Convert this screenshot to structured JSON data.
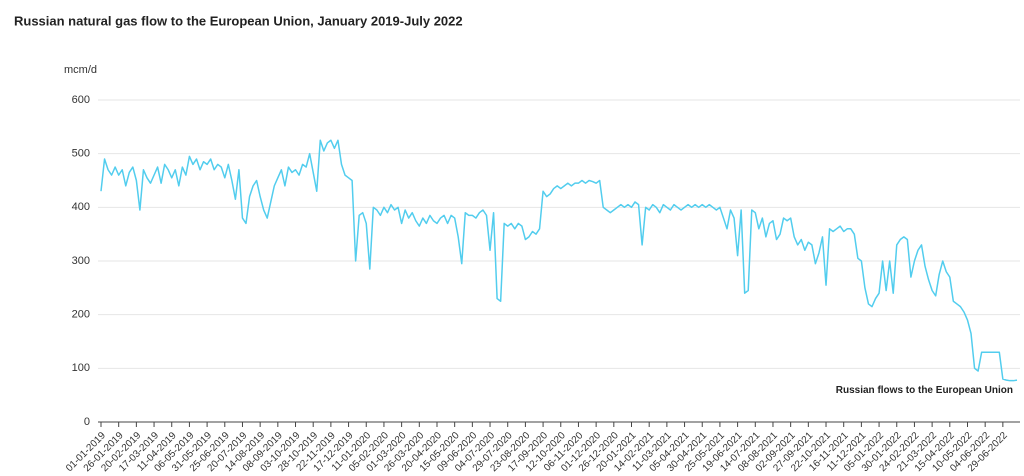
{
  "chart_data": {
    "type": "line",
    "title": "Russian natural gas flow to the European Union, January 2019-July 2022",
    "y_unit": "mcm/d",
    "categories": [
      "01-01-2019",
      null,
      null,
      null,
      null,
      "26-01-2019",
      null,
      null,
      null,
      null,
      "20-02-2019",
      null,
      null,
      null,
      null,
      "17-03-2019",
      null,
      null,
      null,
      null,
      "11-04-2019",
      null,
      null,
      null,
      null,
      "06-05-2019",
      null,
      null,
      null,
      null,
      "31-05-2019",
      null,
      null,
      null,
      null,
      "25-06-2019",
      null,
      null,
      null,
      null,
      "20-07-2019",
      null,
      null,
      null,
      null,
      "14-08-2019",
      null,
      null,
      null,
      null,
      "08-09-2019",
      null,
      null,
      null,
      null,
      "03-10-2019",
      null,
      null,
      null,
      null,
      "28-10-2019",
      null,
      null,
      null,
      null,
      "22-11-2019",
      null,
      null,
      null,
      null,
      "17-12-2019",
      null,
      null,
      null,
      null,
      "11-01-2020",
      null,
      null,
      null,
      null,
      "05-02-2020",
      null,
      null,
      null,
      null,
      "01-03-2020",
      null,
      null,
      null,
      null,
      "26-03-2020",
      null,
      null,
      null,
      null,
      "20-04-2020",
      null,
      null,
      null,
      null,
      "15-05-2020",
      null,
      null,
      null,
      null,
      "09-06-2020",
      null,
      null,
      null,
      null,
      "04-07-2020",
      null,
      null,
      null,
      null,
      "29-07-2020",
      null,
      null,
      null,
      null,
      "23-08-2020",
      null,
      null,
      null,
      null,
      "17-09-2020",
      null,
      null,
      null,
      null,
      "12-10-2020",
      null,
      null,
      null,
      null,
      "06-11-2020",
      null,
      null,
      null,
      null,
      "01-12-2020",
      null,
      null,
      null,
      null,
      "26-12-2020",
      null,
      null,
      null,
      null,
      "20-01-2021",
      null,
      null,
      null,
      null,
      "14-02-2021",
      null,
      null,
      null,
      null,
      "11-03-2021",
      null,
      null,
      null,
      null,
      "05-04-2021",
      null,
      null,
      null,
      null,
      "30-04-2021",
      null,
      null,
      null,
      null,
      "25-05-2021",
      null,
      null,
      null,
      null,
      "19-06-2021",
      null,
      null,
      null,
      null,
      "14-07-2021",
      null,
      null,
      null,
      null,
      "08-08-2021",
      null,
      null,
      null,
      null,
      "02-09-2021",
      null,
      null,
      null,
      null,
      "27-09-2021",
      null,
      null,
      null,
      null,
      "22-10-2021",
      null,
      null,
      null,
      null,
      "16-11-2021",
      null,
      null,
      null,
      null,
      "11-12-2021",
      null,
      null,
      null,
      null,
      "05-01-2022",
      null,
      null,
      null,
      null,
      "30-01-2022",
      null,
      null,
      null,
      null,
      "24-02-2022",
      null,
      null,
      null,
      null,
      "21-03-2022",
      null,
      null,
      null,
      null,
      "15-04-2022",
      null,
      null,
      null,
      null,
      "10-05-2022",
      null,
      null,
      null,
      null,
      "04-06-2022",
      null,
      null,
      null,
      null,
      "29-06-2022",
      null,
      null,
      null,
      null
    ],
    "series": [
      {
        "name": "Russian flows to the European Union",
        "color": "#52cdee",
        "values": [
          430,
          490,
          470,
          460,
          475,
          460,
          470,
          440,
          465,
          475,
          450,
          395,
          470,
          455,
          445,
          460,
          475,
          445,
          480,
          470,
          455,
          470,
          440,
          475,
          460,
          495,
          480,
          490,
          470,
          485,
          480,
          490,
          470,
          480,
          475,
          455,
          480,
          450,
          415,
          470,
          380,
          370,
          420,
          440,
          450,
          420,
          395,
          380,
          410,
          440,
          455,
          470,
          440,
          475,
          465,
          470,
          460,
          480,
          475,
          500,
          465,
          430,
          525,
          505,
          520,
          525,
          510,
          525,
          480,
          460,
          455,
          450,
          300,
          385,
          390,
          370,
          285,
          400,
          395,
          385,
          400,
          390,
          405,
          395,
          400,
          370,
          395,
          380,
          390,
          375,
          365,
          380,
          370,
          385,
          375,
          370,
          380,
          385,
          370,
          385,
          380,
          345,
          295,
          390,
          385,
          385,
          380,
          390,
          395,
          385,
          320,
          390,
          230,
          225,
          370,
          365,
          370,
          360,
          370,
          365,
          340,
          345,
          355,
          350,
          360,
          430,
          420,
          425,
          435,
          440,
          435,
          440,
          445,
          440,
          445,
          445,
          450,
          445,
          450,
          448,
          445,
          450,
          400,
          395,
          390,
          395,
          400,
          405,
          400,
          405,
          400,
          410,
          405,
          330,
          400,
          395,
          405,
          400,
          390,
          405,
          400,
          395,
          405,
          400,
          395,
          400,
          405,
          400,
          405,
          400,
          405,
          400,
          405,
          400,
          395,
          400,
          380,
          360,
          395,
          380,
          310,
          395,
          240,
          245,
          395,
          390,
          360,
          380,
          345,
          370,
          375,
          340,
          350,
          380,
          375,
          380,
          345,
          330,
          340,
          320,
          335,
          330,
          295,
          315,
          345,
          255,
          360,
          355,
          360,
          365,
          355,
          360,
          360,
          350,
          305,
          300,
          250,
          220,
          215,
          230,
          240,
          300,
          245,
          300,
          240,
          330,
          340,
          345,
          340,
          270,
          300,
          320,
          330,
          290,
          265,
          245,
          235,
          275,
          300,
          280,
          270,
          225,
          220,
          215,
          205,
          190,
          165,
          100,
          95,
          130,
          130,
          130,
          130,
          130,
          130,
          80,
          78,
          77,
          77,
          78
        ]
      }
    ],
    "ylim": [
      0,
      600
    ],
    "yticks": [
      0,
      100,
      200,
      300,
      400,
      500,
      600
    ],
    "grid": true
  }
}
